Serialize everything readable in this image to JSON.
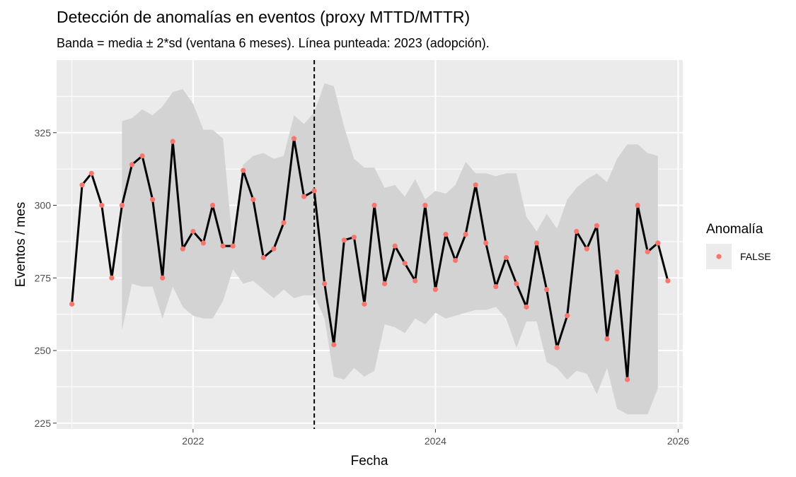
{
  "chart_data": {
    "type": "line",
    "title": "Detección de anomalías en eventos (proxy MTTD/MTTR)",
    "subtitle": "Banda = media ± 2*sd (ventana 6 meses). Línea punteada: 2023 (adopción).",
    "xlabel": "Fecha",
    "ylabel": "Eventos / mes",
    "xlim": [
      "2020-11-16",
      "2026-01-15"
    ],
    "ylim": [
      223,
      350
    ],
    "x_ticks": [
      "2022",
      "2024",
      "2026"
    ],
    "y_ticks": [
      225,
      250,
      275,
      300,
      325
    ],
    "grid": true,
    "vline_date": "2023-01-01",
    "legend": {
      "title": "Anomalía",
      "position": "right",
      "entries": [
        "FALSE"
      ]
    },
    "colors": {
      "panel": "#ebebeb",
      "band": "#d3d3d3",
      "line": "#000000",
      "point": "#f8766d",
      "grid": "#ffffff"
    },
    "dates": [
      "2021-01",
      "2021-02",
      "2021-03",
      "2021-04",
      "2021-05",
      "2021-06",
      "2021-07",
      "2021-08",
      "2021-09",
      "2021-10",
      "2021-11",
      "2021-12",
      "2022-01",
      "2022-02",
      "2022-03",
      "2022-04",
      "2022-05",
      "2022-06",
      "2022-07",
      "2022-08",
      "2022-09",
      "2022-10",
      "2022-11",
      "2022-12",
      "2023-01",
      "2023-02",
      "2023-03",
      "2023-04",
      "2023-05",
      "2023-06",
      "2023-07",
      "2023-08",
      "2023-09",
      "2023-10",
      "2023-11",
      "2023-12",
      "2024-01",
      "2024-02",
      "2024-03",
      "2024-04",
      "2024-05",
      "2024-06",
      "2024-07",
      "2024-08",
      "2024-09",
      "2024-10",
      "2024-11",
      "2024-12",
      "2025-01",
      "2025-02",
      "2025-03",
      "2025-04",
      "2025-05",
      "2025-06",
      "2025-07",
      "2025-08",
      "2025-09",
      "2025-10",
      "2025-11",
      "2025-12"
    ],
    "values": [
      266,
      307,
      311,
      300,
      275,
      300,
      314,
      317,
      302,
      275,
      322,
      285,
      291,
      287,
      300,
      286,
      286,
      312,
      302,
      282,
      285,
      294,
      323,
      303,
      305,
      273,
      252,
      288,
      289,
      266,
      300,
      273,
      286,
      280,
      274,
      300,
      271,
      290,
      281,
      290,
      307,
      287,
      272,
      282,
      273,
      265,
      287,
      271,
      251,
      262,
      291,
      285,
      293,
      254,
      277,
      240,
      300,
      284,
      287,
      274
    ],
    "band_upper": [
      null,
      null,
      null,
      null,
      null,
      329,
      330,
      333,
      331,
      334,
      339,
      340,
      335,
      326,
      326,
      323,
      286,
      314,
      317,
      318,
      316,
      317,
      331,
      328,
      332,
      342,
      341,
      327,
      316,
      313,
      313,
      306,
      307,
      303,
      309,
      302,
      305,
      304,
      307,
      315,
      311,
      311,
      310,
      311,
      311,
      296,
      291,
      297,
      292,
      302,
      306,
      309,
      311,
      308,
      316,
      321,
      321,
      318,
      317,
      null
    ],
    "band_lower": [
      null,
      null,
      null,
      null,
      null,
      257,
      273,
      272,
      272,
      261,
      272,
      265,
      262,
      261,
      261,
      267,
      278,
      273,
      274,
      271,
      268,
      271,
      268,
      269,
      269,
      261,
      241,
      240,
      244,
      241,
      243,
      259,
      258,
      256,
      261,
      259,
      263,
      261,
      262,
      263,
      264,
      264,
      265,
      261,
      251,
      260,
      260,
      246,
      244,
      240,
      243,
      242,
      235,
      244,
      230,
      228,
      228,
      228,
      237,
      null
    ]
  }
}
